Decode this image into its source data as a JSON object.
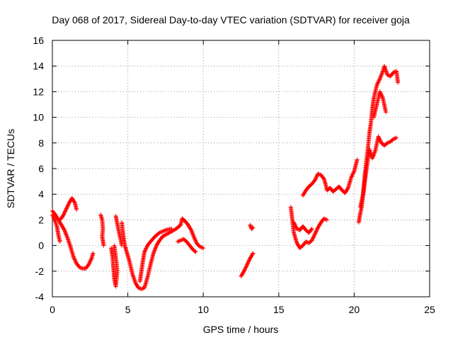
{
  "chart_data": {
    "type": "scatter",
    "title": "Day 068 of 2017, Sidereal Day-to-day VTEC variation (SDTVAR) for receiver goja",
    "xlabel": "GPS time / hours",
    "ylabel": "SDTVAR / TECUs",
    "xlim": [
      0,
      25
    ],
    "ylim": [
      -4,
      16
    ],
    "xticks": [
      0,
      5,
      10,
      15,
      20,
      25
    ],
    "yticks": [
      -4,
      -2,
      0,
      2,
      4,
      6,
      8,
      10,
      12,
      14,
      16
    ],
    "grid": true,
    "marker": "+",
    "color": "#ff0000",
    "series": [
      {
        "segments": [
          [
            [
              0.0,
              2.7
            ],
            [
              0.2,
              2.4
            ],
            [
              0.4,
              2.0
            ],
            [
              0.6,
              1.6
            ],
            [
              0.8,
              1.2
            ],
            [
              1.0,
              0.6
            ],
            [
              1.2,
              -0.1
            ],
            [
              1.4,
              -0.9
            ],
            [
              1.6,
              -1.4
            ],
            [
              1.8,
              -1.7
            ],
            [
              2.0,
              -1.8
            ],
            [
              2.2,
              -1.8
            ],
            [
              2.4,
              -1.5
            ],
            [
              2.6,
              -1.0
            ],
            [
              2.7,
              -0.6
            ]
          ],
          [
            [
              0.0,
              2.4
            ],
            [
              0.15,
              2.0
            ],
            [
              0.3,
              1.5
            ],
            [
              0.4,
              0.8
            ],
            [
              0.5,
              0.3
            ]
          ],
          [
            [
              0.5,
              2.0
            ],
            [
              0.7,
              2.3
            ],
            [
              0.9,
              2.8
            ],
            [
              1.1,
              3.3
            ],
            [
              1.3,
              3.7
            ],
            [
              1.5,
              3.3
            ],
            [
              1.6,
              2.8
            ]
          ],
          [
            [
              3.2,
              2.4
            ],
            [
              3.3,
              2.0
            ],
            [
              3.35,
              1.3
            ],
            [
              3.3,
              0.7
            ],
            [
              3.4,
              0.0
            ]
          ],
          [
            [
              3.9,
              -0.2
            ],
            [
              4.0,
              -1.0
            ],
            [
              4.05,
              -1.8
            ],
            [
              4.1,
              -2.6
            ],
            [
              4.2,
              -3.2
            ],
            [
              4.3,
              -2.0
            ],
            [
              4.2,
              -0.9
            ],
            [
              4.1,
              0.0
            ]
          ],
          [
            [
              4.2,
              2.3
            ],
            [
              4.35,
              1.4
            ],
            [
              4.5,
              0.6
            ],
            [
              4.6,
              0.0
            ]
          ],
          [
            [
              4.6,
              1.8
            ],
            [
              4.7,
              0.8
            ],
            [
              4.8,
              0.0
            ],
            [
              4.95,
              -0.6
            ],
            [
              5.1,
              -1.2
            ],
            [
              5.3,
              -2.2
            ],
            [
              5.5,
              -2.9
            ],
            [
              5.7,
              -3.3
            ],
            [
              5.9,
              -3.4
            ],
            [
              6.1,
              -3.3
            ],
            [
              6.3,
              -2.5
            ],
            [
              6.5,
              -1.5
            ],
            [
              6.7,
              -0.6
            ],
            [
              6.9,
              0.0
            ],
            [
              7.1,
              0.4
            ],
            [
              7.3,
              0.7
            ],
            [
              7.6,
              0.9
            ],
            [
              7.9,
              1.1
            ],
            [
              8.2,
              1.3
            ],
            [
              8.5,
              1.6
            ],
            [
              8.6,
              2.1
            ]
          ],
          [
            [
              5.8,
              -2.8
            ],
            [
              5.9,
              -2.0
            ],
            [
              6.0,
              -1.2
            ],
            [
              6.1,
              -0.5
            ],
            [
              6.3,
              0.0
            ],
            [
              6.5,
              0.3
            ],
            [
              6.8,
              0.7
            ],
            [
              7.1,
              1.0
            ],
            [
              7.5,
              1.2
            ],
            [
              7.9,
              1.3
            ]
          ],
          [
            [
              8.3,
              0.3
            ],
            [
              8.5,
              0.4
            ],
            [
              8.7,
              0.5
            ],
            [
              8.9,
              0.3
            ],
            [
              9.1,
              0.0
            ],
            [
              9.3,
              -0.3
            ],
            [
              9.5,
              -0.5
            ]
          ],
          [
            [
              8.6,
              2.1
            ],
            [
              8.8,
              1.9
            ],
            [
              9.0,
              1.6
            ],
            [
              9.2,
              1.2
            ],
            [
              9.4,
              0.6
            ],
            [
              9.6,
              0.1
            ],
            [
              9.8,
              -0.1
            ],
            [
              10.0,
              -0.2
            ]
          ],
          [
            [
              12.5,
              -2.4
            ],
            [
              12.7,
              -2.0
            ],
            [
              12.9,
              -1.5
            ],
            [
              13.1,
              -1.0
            ],
            [
              13.3,
              -0.6
            ]
          ],
          [
            [
              13.1,
              1.6
            ],
            [
              13.2,
              1.3
            ],
            [
              13.3,
              1.4
            ]
          ],
          [
            [
              15.8,
              3.0
            ],
            [
              15.9,
              2.0
            ],
            [
              16.0,
              1.0
            ],
            [
              16.2,
              0.2
            ],
            [
              16.4,
              -0.2
            ],
            [
              16.6,
              0.0
            ],
            [
              16.8,
              0.3
            ],
            [
              17.0,
              0.2
            ],
            [
              17.2,
              0.4
            ],
            [
              17.4,
              0.9
            ],
            [
              17.6,
              1.4
            ],
            [
              17.8,
              1.8
            ],
            [
              18.0,
              2.1
            ],
            [
              18.2,
              2.0
            ]
          ],
          [
            [
              16.0,
              1.8
            ],
            [
              16.2,
              1.3
            ],
            [
              16.4,
              1.2
            ],
            [
              16.6,
              1.5
            ],
            [
              16.8,
              1.2
            ],
            [
              17.0,
              1.0
            ],
            [
              17.2,
              1.3
            ]
          ],
          [
            [
              16.6,
              3.9
            ],
            [
              16.8,
              4.3
            ],
            [
              17.0,
              4.6
            ],
            [
              17.2,
              4.8
            ],
            [
              17.4,
              5.1
            ],
            [
              17.6,
              5.6
            ],
            [
              17.8,
              5.5
            ],
            [
              18.0,
              5.2
            ],
            [
              18.1,
              4.8
            ],
            [
              18.2,
              4.3
            ],
            [
              18.4,
              4.5
            ],
            [
              18.6,
              4.2
            ],
            [
              18.8,
              4.4
            ],
            [
              19.0,
              4.6
            ],
            [
              19.2,
              4.3
            ],
            [
              19.4,
              4.1
            ],
            [
              19.6,
              4.5
            ],
            [
              19.8,
              5.3
            ],
            [
              20.0,
              5.8
            ],
            [
              20.2,
              6.7
            ]
          ],
          [
            [
              20.3,
              1.8
            ],
            [
              20.4,
              2.5
            ],
            [
              20.5,
              3.0
            ],
            [
              20.6,
              4.2
            ],
            [
              20.7,
              5.5
            ],
            [
              20.8,
              6.5
            ],
            [
              20.9,
              7.5
            ],
            [
              21.0,
              8.7
            ],
            [
              21.1,
              9.5
            ],
            [
              21.2,
              10.7
            ],
            [
              21.3,
              11.5
            ],
            [
              21.5,
              12.5
            ],
            [
              21.7,
              13.0
            ],
            [
              21.9,
              13.6
            ],
            [
              22.0,
              14.0
            ],
            [
              22.2,
              13.3
            ],
            [
              22.4,
              13.2
            ],
            [
              22.6,
              13.5
            ],
            [
              22.8,
              13.6
            ],
            [
              22.9,
              12.7
            ]
          ],
          [
            [
              20.4,
              3.0
            ],
            [
              20.6,
              4.0
            ],
            [
              20.8,
              5.8
            ],
            [
              21.0,
              7.5
            ],
            [
              21.2,
              6.8
            ],
            [
              21.4,
              7.4
            ],
            [
              21.6,
              8.5
            ],
            [
              21.8,
              8.0
            ],
            [
              22.0,
              7.8
            ],
            [
              22.2,
              8.0
            ],
            [
              22.4,
              8.1
            ],
            [
              22.6,
              8.3
            ],
            [
              22.8,
              8.4
            ]
          ],
          [
            [
              21.3,
              10.0
            ],
            [
              21.5,
              11.0
            ],
            [
              21.7,
              12.0
            ],
            [
              21.9,
              11.5
            ],
            [
              22.1,
              10.4
            ]
          ]
        ]
      }
    ]
  }
}
